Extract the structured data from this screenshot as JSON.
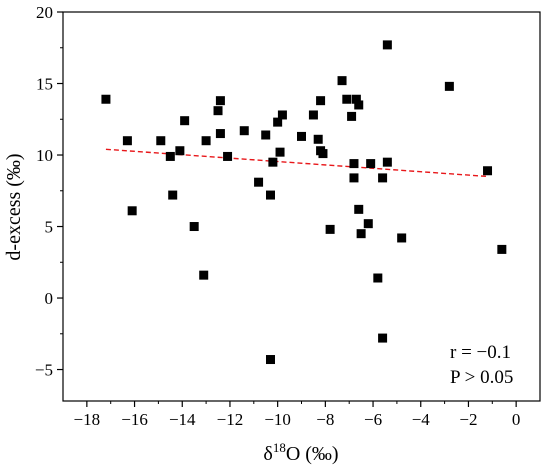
{
  "chart_data": {
    "type": "scatter",
    "xlabel_main": "δ",
    "xlabel_sup": "18",
    "xlabel_rest": "O (‰)",
    "ylabel": "d-excess (‰)",
    "xlim": [
      -19,
      1
    ],
    "ylim": [
      -7.2,
      20
    ],
    "xticks": [
      -18,
      -16,
      -14,
      -12,
      -10,
      -8,
      -6,
      -4,
      -2,
      0
    ],
    "yticks": [
      -5,
      0,
      5,
      10,
      15,
      20
    ],
    "xtick_labels": [
      "−18",
      "−16",
      "−14",
      "−12",
      "−10",
      "−8",
      "−6",
      "−4",
      "−2",
      "0"
    ],
    "ytick_labels": [
      "−5",
      "0",
      "5",
      "10",
      "15",
      "20"
    ],
    "marker_color": "#000000",
    "trend_color": "#e8171a",
    "trendline": {
      "x": [
        -17.2,
        -1.2
      ],
      "y": [
        10.4,
        8.5
      ]
    },
    "annotations": {
      "r": "r = −0.1",
      "p": "P > 0.05"
    },
    "points": [
      {
        "x": -17.2,
        "y": 13.9
      },
      {
        "x": -16.3,
        "y": 11.0
      },
      {
        "x": -16.1,
        "y": 6.1
      },
      {
        "x": -14.9,
        "y": 11.0
      },
      {
        "x": -14.5,
        "y": 9.9
      },
      {
        "x": -14.4,
        "y": 7.2
      },
      {
        "x": -14.1,
        "y": 10.3
      },
      {
        "x": -13.9,
        "y": 12.4
      },
      {
        "x": -13.5,
        "y": 5.0
      },
      {
        "x": -13.1,
        "y": 1.6
      },
      {
        "x": -13.0,
        "y": 11.0
      },
      {
        "x": -12.5,
        "y": 13.1
      },
      {
        "x": -12.4,
        "y": 13.8
      },
      {
        "x": -12.4,
        "y": 11.5
      },
      {
        "x": -12.1,
        "y": 9.9
      },
      {
        "x": -11.4,
        "y": 11.7
      },
      {
        "x": -10.8,
        "y": 8.1
      },
      {
        "x": -10.5,
        "y": 11.4
      },
      {
        "x": -10.3,
        "y": 7.2
      },
      {
        "x": -10.3,
        "y": -4.3
      },
      {
        "x": -10.2,
        "y": 9.5
      },
      {
        "x": -10.0,
        "y": 12.3
      },
      {
        "x": -9.9,
        "y": 10.2
      },
      {
        "x": -9.8,
        "y": 12.8
      },
      {
        "x": -9.0,
        "y": 11.3
      },
      {
        "x": -8.5,
        "y": 12.8
      },
      {
        "x": -8.3,
        "y": 11.1
      },
      {
        "x": -8.2,
        "y": 13.8
      },
      {
        "x": -8.2,
        "y": 10.3
      },
      {
        "x": -8.1,
        "y": 10.1
      },
      {
        "x": -7.8,
        "y": 4.8
      },
      {
        "x": -7.3,
        "y": 15.2
      },
      {
        "x": -7.1,
        "y": 13.9
      },
      {
        "x": -6.9,
        "y": 12.7
      },
      {
        "x": -6.8,
        "y": 9.4
      },
      {
        "x": -6.8,
        "y": 8.4
      },
      {
        "x": -6.7,
        "y": 13.9
      },
      {
        "x": -6.6,
        "y": 13.5
      },
      {
        "x": -6.6,
        "y": 6.2
      },
      {
        "x": -6.5,
        "y": 4.5
      },
      {
        "x": -6.2,
        "y": 5.2
      },
      {
        "x": -6.1,
        "y": 9.4
      },
      {
        "x": -5.8,
        "y": 1.4
      },
      {
        "x": -5.6,
        "y": 8.4
      },
      {
        "x": -5.6,
        "y": -2.8
      },
      {
        "x": -5.4,
        "y": 17.7
      },
      {
        "x": -5.4,
        "y": 9.5
      },
      {
        "x": -4.8,
        "y": 4.2
      },
      {
        "x": -2.8,
        "y": 14.8
      },
      {
        "x": -1.2,
        "y": 8.9
      },
      {
        "x": -0.6,
        "y": 3.4
      }
    ]
  }
}
